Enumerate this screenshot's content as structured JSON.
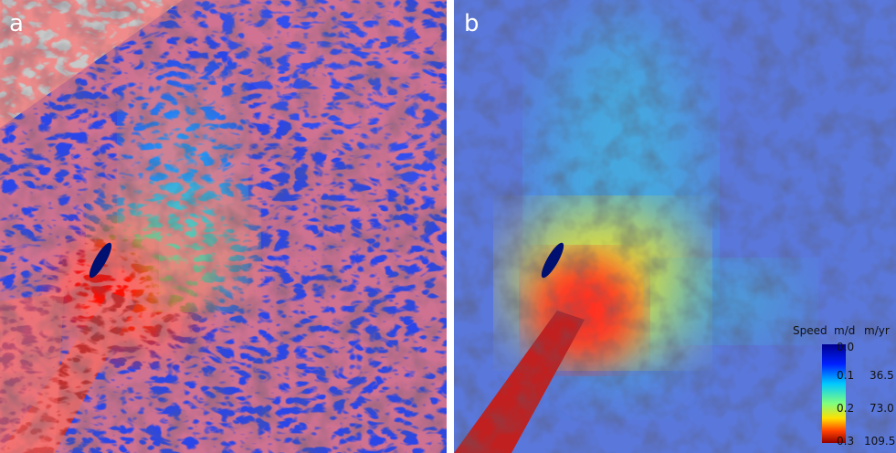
{
  "panels": [
    {
      "label": "a"
    },
    {
      "label": "b"
    }
  ],
  "legend": {
    "title": "Speed",
    "units": [
      "m/d",
      "m/yr"
    ],
    "m_d": [
      "0.0",
      "0.1",
      "0.2",
      "0.3"
    ],
    "m_yr": [
      "36.5",
      "73.0",
      "109.5"
    ]
  }
}
